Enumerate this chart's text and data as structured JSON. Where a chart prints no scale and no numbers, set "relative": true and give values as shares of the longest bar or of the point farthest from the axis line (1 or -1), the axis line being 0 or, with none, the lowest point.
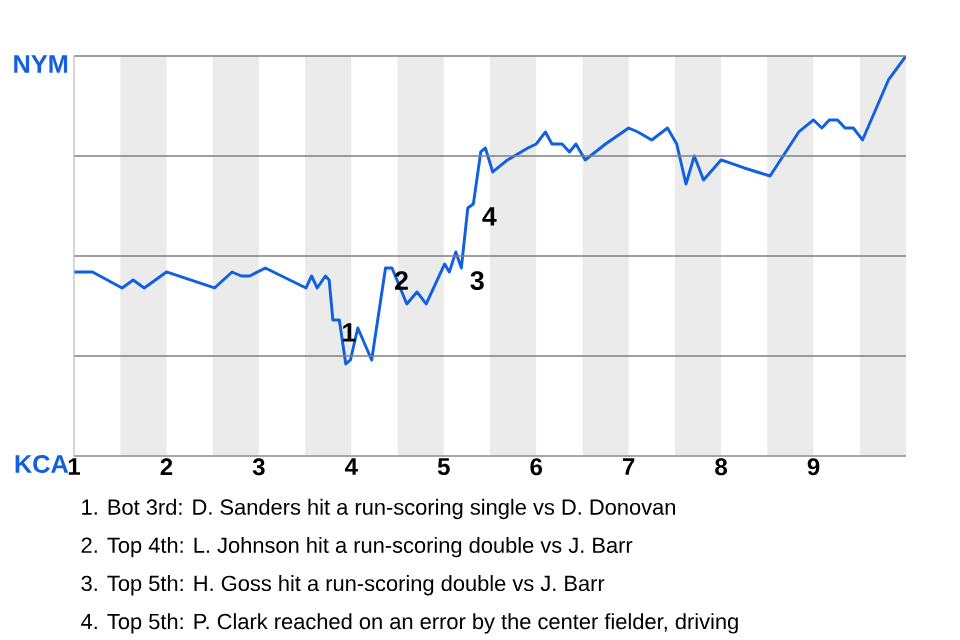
{
  "chart_data": {
    "type": "line",
    "relative": true,
    "xlim": [
      1,
      10
    ],
    "xticks": [
      1,
      2,
      3,
      4,
      5,
      6,
      7,
      8,
      9
    ],
    "grid": "y",
    "marker": "none",
    "line_style": "solid",
    "series": [
      {
        "color": "#1060e0",
        "x": [
          1.0,
          1.2,
          1.52,
          1.64,
          1.76,
          2.0,
          2.52,
          2.71,
          2.81,
          2.9,
          3.07,
          3.51,
          3.57,
          3.63,
          3.72,
          3.76,
          3.8,
          3.87,
          3.94,
          3.99,
          4.07,
          4.22,
          4.37,
          4.44,
          4.6,
          4.71,
          4.81,
          5.01,
          5.06,
          5.13,
          5.19,
          5.26,
          5.32,
          5.4,
          5.45,
          5.53,
          5.69,
          5.91,
          6.0,
          6.1,
          6.17,
          6.28,
          6.36,
          6.43,
          6.53,
          6.75,
          7.0,
          7.1,
          7.25,
          7.42,
          7.52,
          7.62,
          7.71,
          7.81,
          8.0,
          8.25,
          8.53,
          8.84,
          9.0,
          9.09,
          9.17,
          9.26,
          9.34,
          9.43,
          9.53,
          9.81,
          10.0
        ],
        "values": [
          0.46,
          0.46,
          0.42,
          0.44,
          0.42,
          0.46,
          0.42,
          0.46,
          0.45,
          0.45,
          0.47,
          0.42,
          0.45,
          0.42,
          0.45,
          0.44,
          0.34,
          0.34,
          0.23,
          0.24,
          0.32,
          0.24,
          0.47,
          0.47,
          0.38,
          0.41,
          0.38,
          0.48,
          0.46,
          0.51,
          0.47,
          0.62,
          0.63,
          0.76,
          0.77,
          0.71,
          0.74,
          0.77,
          0.78,
          0.81,
          0.78,
          0.78,
          0.76,
          0.78,
          0.74,
          0.78,
          0.82,
          0.81,
          0.79,
          0.82,
          0.78,
          0.68,
          0.75,
          0.69,
          0.74,
          0.72,
          0.7,
          0.81,
          0.84,
          0.82,
          0.84,
          0.84,
          0.82,
          0.82,
          0.79,
          0.94,
          1.0
        ]
      }
    ],
    "bands": [
      {
        "axis": "x",
        "from": 1.5,
        "to": 2,
        "color": "#ebebeb"
      },
      {
        "axis": "x",
        "from": 2.5,
        "to": 3,
        "color": "#ebebeb"
      },
      {
        "axis": "x",
        "from": 3.5,
        "to": 4,
        "color": "#ebebeb"
      },
      {
        "axis": "x",
        "from": 4.5,
        "to": 5,
        "color": "#ebebeb"
      },
      {
        "axis": "x",
        "from": 5.5,
        "to": 6,
        "color": "#ebebeb"
      },
      {
        "axis": "x",
        "from": 6.5,
        "to": 7,
        "color": "#ebebeb"
      },
      {
        "axis": "x",
        "from": 7.5,
        "to": 8,
        "color": "#ebebeb"
      },
      {
        "axis": "x",
        "from": 8.5,
        "to": 9,
        "color": "#ebebeb"
      },
      {
        "axis": "x",
        "from": 9.5,
        "to": 10,
        "color": "#ebebeb"
      }
    ],
    "annotations": [
      "NYM",
      "KCA",
      {
        "text": "1",
        "x": 3.8,
        "y": 0.34
      },
      {
        "text": "2",
        "x": 4.37,
        "y": 0.47
      },
      {
        "text": "3",
        "x": 5.19,
        "y": 0.47
      },
      {
        "text": "4",
        "x": 5.32,
        "y": 0.63
      },
      "1. Bot 3rd: D. Sanders hit a run-scoring single vs D. Donovan",
      "2. Top 4th: L. Johnson hit a run-scoring double vs J. Barr",
      "3. Top 5th: H. Goss hit a run-scoring double vs J. Barr",
      "4. Top 5th: P. Clark reached on an error by the center fielder, driving"
    ]
  }
}
